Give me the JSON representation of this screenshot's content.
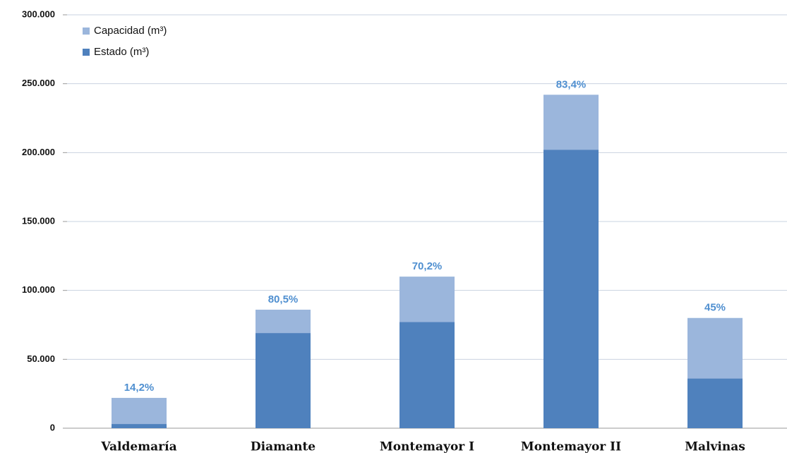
{
  "chart_data": {
    "type": "bar",
    "barmode": "overlay",
    "categories": [
      "Valdemaría",
      "Diamante",
      "Montemayor I",
      "Montemayor II",
      "Malvinas"
    ],
    "series": [
      {
        "name": "Capacidad (m³)",
        "color": "#9bb6dc",
        "values": [
          22000,
          86000,
          110000,
          242000,
          80000
        ]
      },
      {
        "name": "Estado (m³)",
        "color": "#4f81bd",
        "values": [
          3000,
          69000,
          77000,
          202000,
          36000
        ]
      }
    ],
    "annotations": [
      "14,2%",
      "80,5%",
      "70,2%",
      "83,4%",
      "45%"
    ],
    "ylim": [
      0,
      300000
    ],
    "yticks": [
      0,
      {
        "value": 50000,
        "label": "50.000"
      },
      {
        "value": 100000,
        "label": "100.000"
      },
      {
        "value": 150000,
        "label": "150.000"
      },
      {
        "value": 200000,
        "label": "200.000"
      },
      {
        "value": 250000,
        "label": "250.000"
      },
      {
        "value": 300000,
        "label": "300.000"
      }
    ],
    "grid": true,
    "legend": "upper-left"
  }
}
